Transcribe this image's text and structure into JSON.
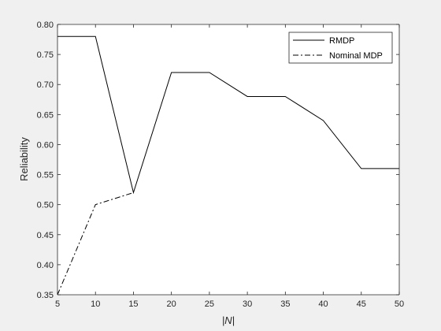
{
  "chart_data": {
    "type": "line",
    "xlabel": "|N|",
    "ylabel": "Reliability",
    "xlim": [
      5,
      50
    ],
    "ylim": [
      0.35,
      0.8
    ],
    "xticks": [
      "5",
      "10",
      "15",
      "20",
      "25",
      "30",
      "35",
      "40",
      "45",
      "50"
    ],
    "yticks": [
      "0.35",
      "0.40",
      "0.45",
      "0.50",
      "0.55",
      "0.60",
      "0.65",
      "0.70",
      "0.75",
      "0.80"
    ],
    "legend_position": "top-right",
    "grid": false,
    "series": [
      {
        "name": "RMDP",
        "style": "solid",
        "color": "#000000",
        "x": [
          5,
          10,
          15,
          20,
          25,
          30,
          35,
          40,
          45,
          50
        ],
        "y": [
          0.78,
          0.78,
          0.52,
          0.72,
          0.72,
          0.68,
          0.68,
          0.64,
          0.56,
          0.56
        ]
      },
      {
        "name": "Nominal MDP",
        "style": "dash-dot",
        "color": "#000000",
        "x": [
          5,
          10,
          15
        ],
        "y": [
          0.35,
          0.5,
          0.52
        ]
      }
    ]
  }
}
